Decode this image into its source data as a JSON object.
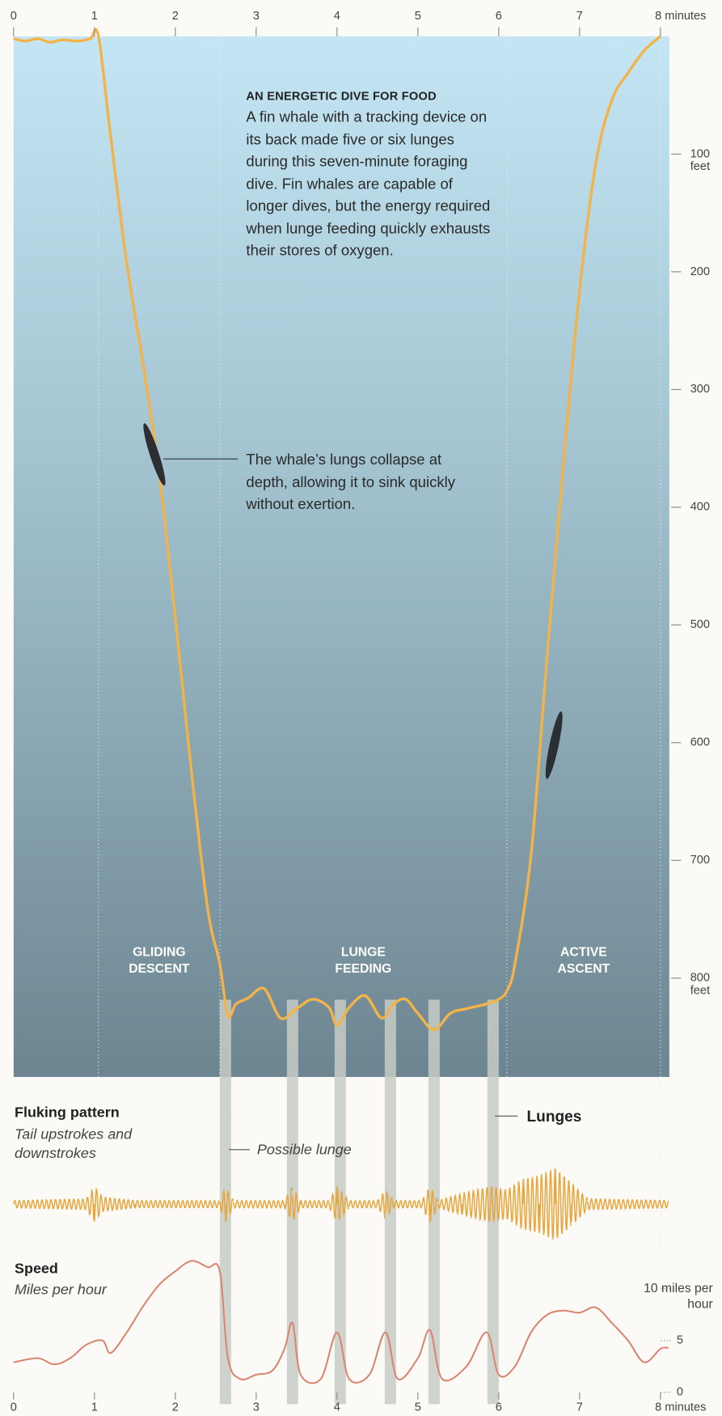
{
  "chart_data": [
    {
      "type": "line",
      "title": "AN ENERGETIC DIVE FOR FOOD",
      "description": "A fin whale with a tracking device on its back made five or six lunges during this seven-minute foraging dive. Fin whales are capable of longer dives, but the energy required when lunge feeding quickly exhausts their stores of oxygen.",
      "annotation": "The whale’s lungs collapse at depth, allowing it to sink quickly without exertion.",
      "phases": [
        "GLIDING DESCENT",
        "LUNGE FEEDING",
        "ACTIVE ASCENT"
      ],
      "phase_boundaries": [
        1.05,
        2.55,
        6.1,
        8
      ],
      "lunges": [
        [
          2.55,
          2.69
        ],
        [
          3.38,
          3.52
        ],
        [
          3.97,
          4.11
        ],
        [
          4.59,
          4.73
        ],
        [
          5.13,
          5.27
        ],
        [
          5.86,
          6.0
        ]
      ],
      "lunge_label": "Lunges",
      "possible_lunge_label": "Possible lunge",
      "x": [
        0,
        0.15,
        0.3,
        0.45,
        0.6,
        0.8,
        0.95,
        1.05,
        1.2,
        1.4,
        1.6,
        1.8,
        2.0,
        2.2,
        2.4,
        2.55,
        2.65,
        2.75,
        2.9,
        3.1,
        3.3,
        3.5,
        3.7,
        3.9,
        4.0,
        4.15,
        4.35,
        4.55,
        4.7,
        4.85,
        5.0,
        5.2,
        5.4,
        5.6,
        5.85,
        6.0,
        6.1,
        6.2,
        6.4,
        6.6,
        6.8,
        7.0,
        7.2,
        7.4,
        7.6,
        7.8,
        8.0
      ],
      "values": [
        2,
        4,
        2,
        5,
        3,
        4,
        2,
        0,
        85,
        193,
        278,
        371,
        494,
        625,
        741,
        788,
        832,
        822,
        817,
        809,
        834,
        826,
        818,
        825,
        840,
        825,
        815,
        834,
        822,
        818,
        830,
        844,
        830,
        826,
        822,
        818,
        811,
        788,
        695,
        525,
        363,
        216,
        108,
        54,
        31,
        12,
        0
      ],
      "color": "#f2b348",
      "xlim": [
        0,
        8.11
      ],
      "ylim": [
        0,
        884
      ],
      "y_reversed": true,
      "y_unit": "feet",
      "xticks": [
        0,
        1,
        2,
        3,
        4,
        5,
        6,
        7,
        {
          "value": 8,
          "label": "8 minutes"
        }
      ],
      "yticks": [
        100,
        200,
        300,
        400,
        500,
        600,
        700,
        800
      ],
      "grid": false
    },
    {
      "type": "oscillation",
      "title": "Fluking pattern",
      "subtitle": "Tail upstrokes and downstrokes",
      "x": [
        0,
        0.9,
        1.0,
        1.1,
        1.5,
        2.55,
        2.62,
        2.72,
        3.35,
        3.45,
        3.55,
        3.9,
        4.0,
        4.15,
        4.5,
        4.6,
        4.7,
        5.05,
        5.15,
        5.25,
        5.55,
        5.9,
        6.1,
        6.3,
        6.5,
        6.7,
        6.9,
        7.1,
        8.1
      ],
      "values": [
        1,
        1.5,
        5,
        2,
        1,
        1,
        5,
        1,
        1,
        5,
        1,
        1,
        5,
        1,
        1,
        4,
        1,
        1,
        5,
        1,
        3,
        5,
        4,
        7,
        8,
        10,
        6,
        1.5,
        1
      ],
      "color": "#e8a53a",
      "xlim": [
        0,
        8.11
      ],
      "ylim": [
        -10,
        10
      ]
    },
    {
      "type": "line",
      "title": "Speed",
      "subtitle": "Miles per hour",
      "x": [
        0,
        0.3,
        0.5,
        0.7,
        0.9,
        1.1,
        1.2,
        1.4,
        1.6,
        1.8,
        2.0,
        2.2,
        2.4,
        2.55,
        2.65,
        2.8,
        3.0,
        3.2,
        3.35,
        3.45,
        3.55,
        3.8,
        4.0,
        4.15,
        4.4,
        4.6,
        4.75,
        5.0,
        5.15,
        5.3,
        5.6,
        5.85,
        6.0,
        6.2,
        6.4,
        6.6,
        6.8,
        7.0,
        7.2,
        7.4,
        7.6,
        7.8,
        8.0,
        8.1
      ],
      "values": [
        2.9,
        3.3,
        2.7,
        3.3,
        4.6,
        5.0,
        3.8,
        5.8,
        8.3,
        10.4,
        11.7,
        12.7,
        12.1,
        11.7,
        3.3,
        1.3,
        1.7,
        2.1,
        4.2,
        6.7,
        1.7,
        1.3,
        5.8,
        1.3,
        1.7,
        5.8,
        1.3,
        3.3,
        6.0,
        1.3,
        2.5,
        5.8,
        1.7,
        2.5,
        5.8,
        7.5,
        7.9,
        7.7,
        8.2,
        6.7,
        5.0,
        2.9,
        4.2,
        4.3
      ],
      "color": "#d9846f",
      "xlim": [
        0,
        8.11
      ],
      "ylim": [
        0,
        13
      ],
      "xticks": [
        0,
        1,
        2,
        3,
        4,
        5,
        6,
        7,
        {
          "value": 8,
          "label": "8 minutes"
        }
      ],
      "yticks": [
        0,
        5,
        {
          "value": 10,
          "label": "10 miles per hour"
        }
      ],
      "grid": false
    }
  ]
}
